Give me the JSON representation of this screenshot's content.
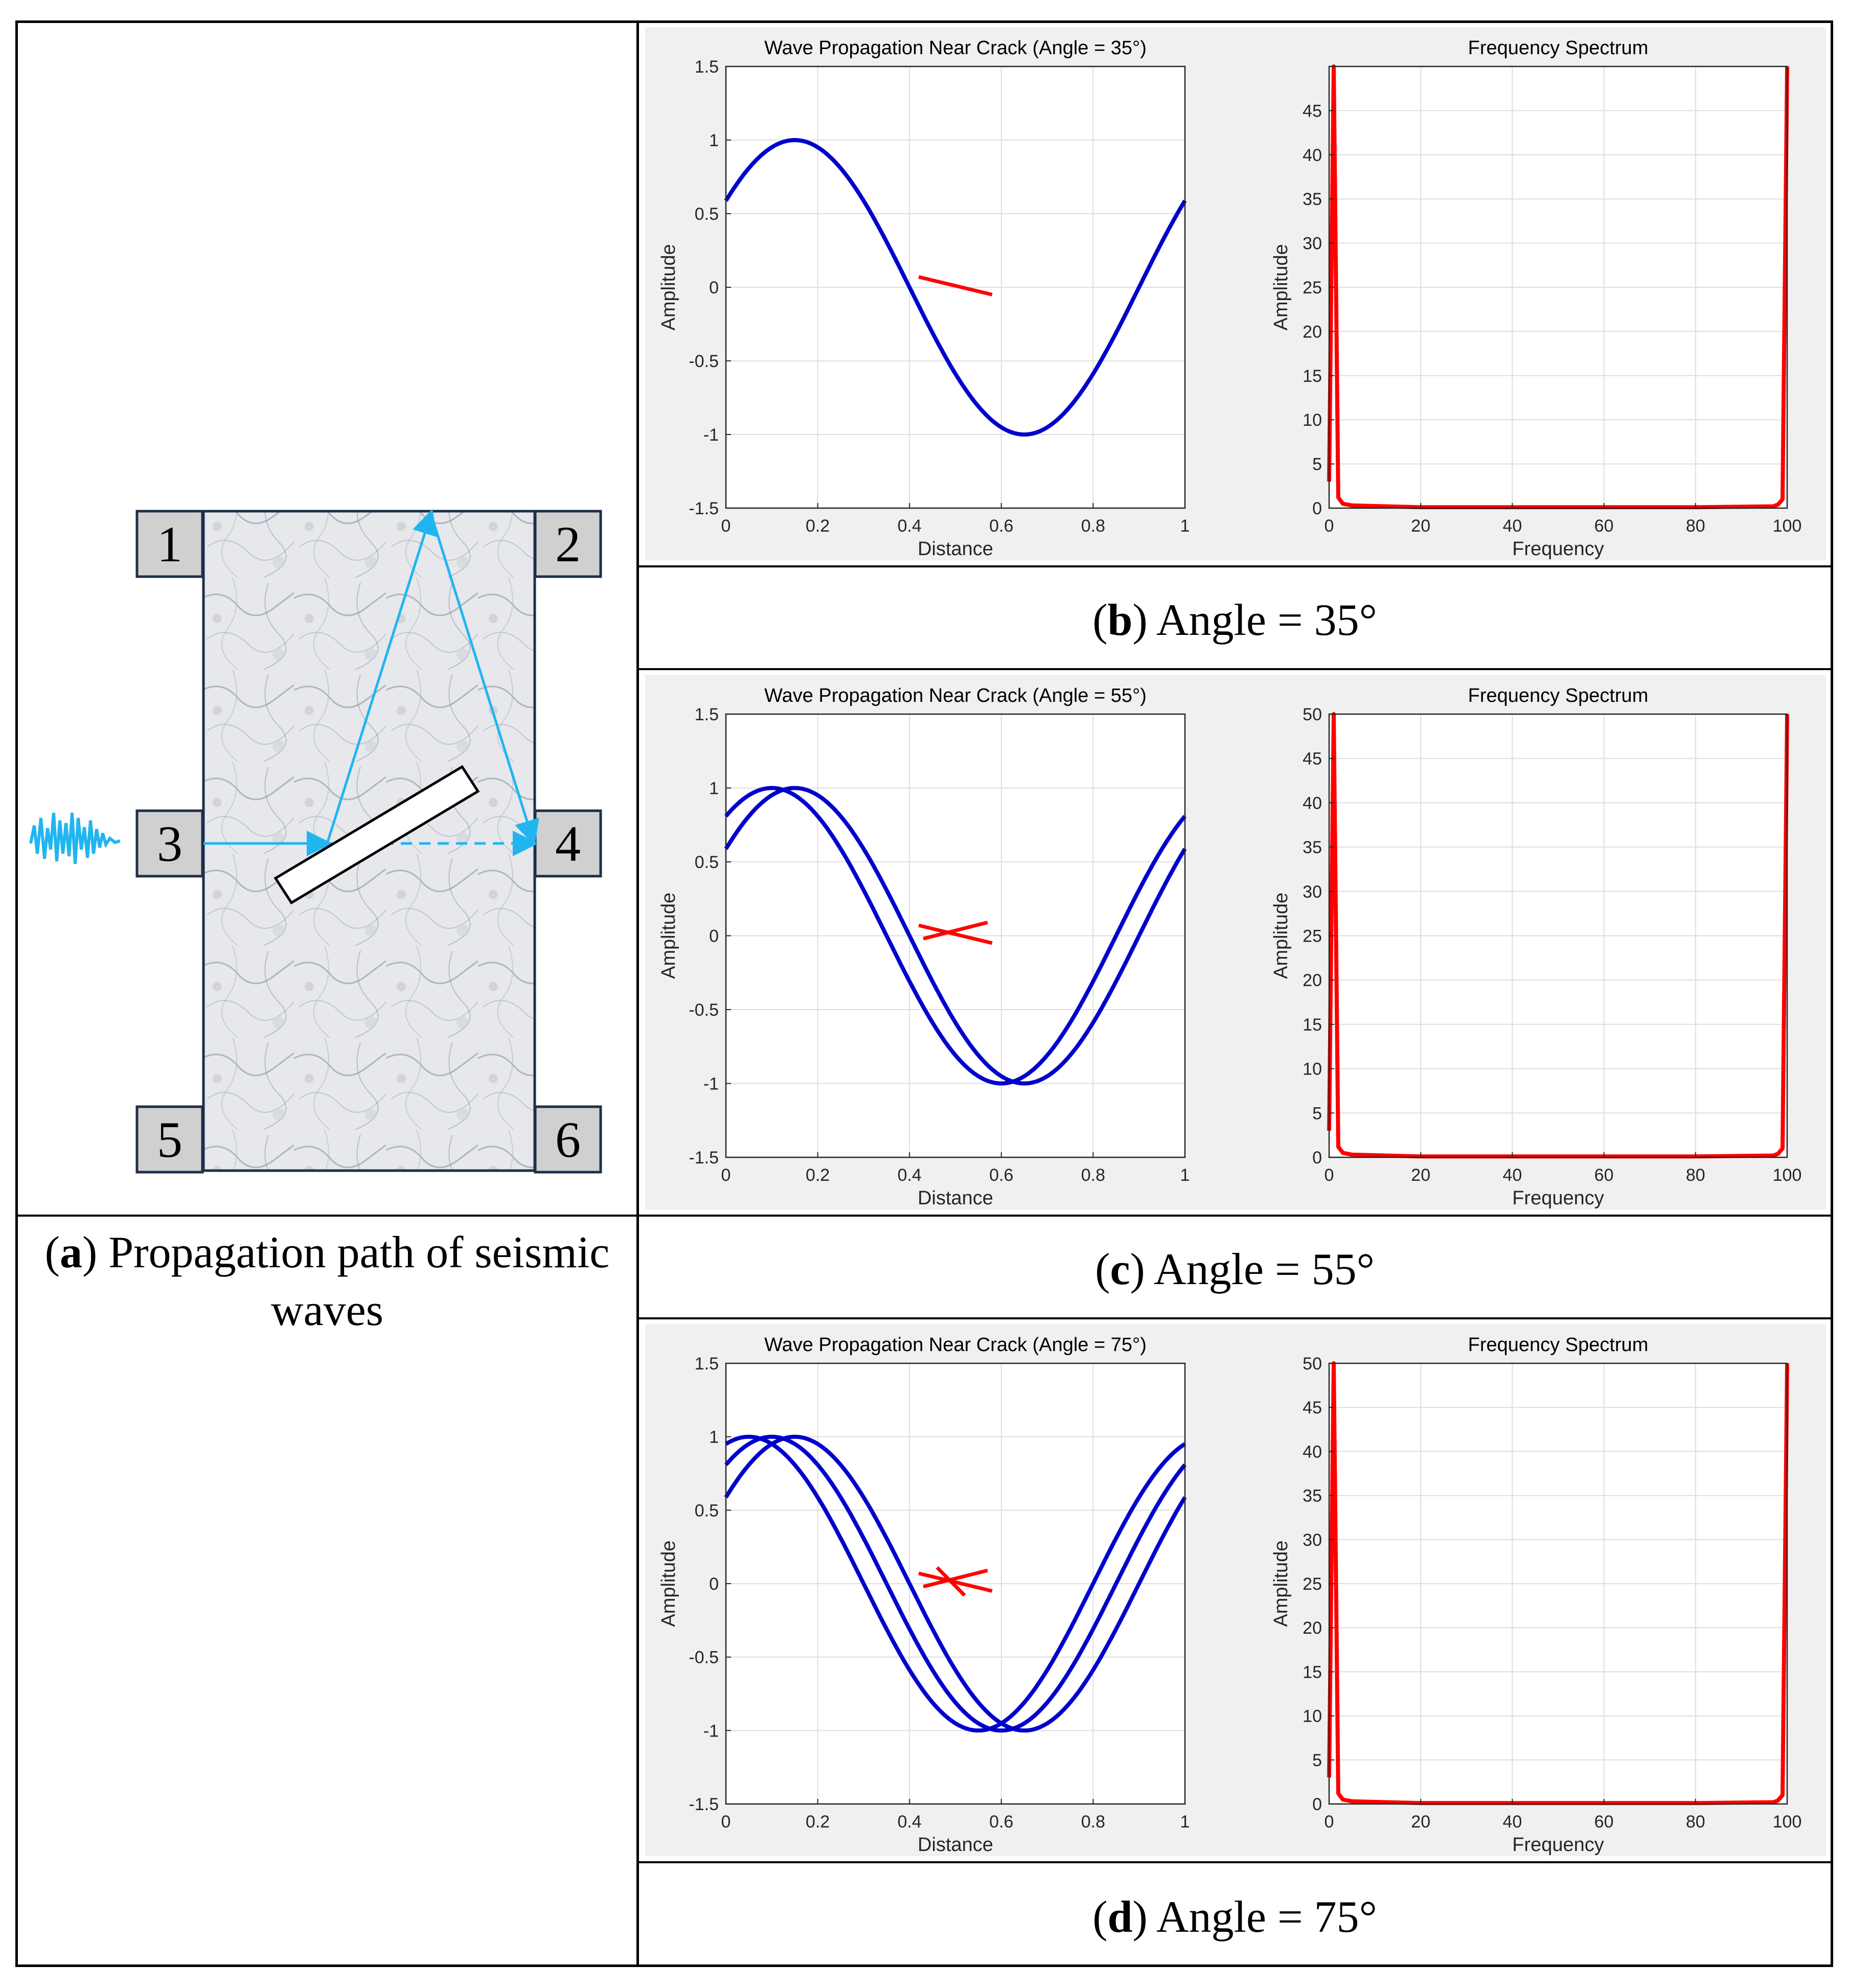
{
  "colors": {
    "wave": "#0000cc",
    "crack": "#ff0000",
    "spectrum": "#ff0000",
    "arrow": "#21b5f0",
    "panel_bg": "#f0f0f0",
    "rock_bg": "#e4e6ea"
  },
  "panel_a": {
    "caption_letter": "a",
    "caption_rest": "Propagation path of seismic waves",
    "sensors": [
      "1",
      "2",
      "3",
      "4",
      "5",
      "6"
    ]
  },
  "panels": [
    {
      "letter": "b",
      "caption_rest": "Angle = 35°"
    },
    {
      "letter": "c",
      "caption_rest": "Angle = 55°"
    },
    {
      "letter": "d",
      "caption_rest": "Angle = 75°"
    }
  ],
  "chart_data": [
    {
      "type": "line",
      "title": "Wave Propagation Near Crack (Angle = 35°)",
      "xlabel": "Distance",
      "ylabel": "Amplitude",
      "xlim": [
        0,
        1
      ],
      "ylim": [
        -1.5,
        1.5
      ],
      "xticks": [
        "0",
        "0.2",
        "0.4",
        "0.6",
        "0.8",
        "1"
      ],
      "yticks": [
        "-1.5",
        "-1",
        "-0.5",
        "0",
        "0.5",
        "1",
        "1.5"
      ],
      "grid": true,
      "series": [
        {
          "phase_shifts": [
            0
          ],
          "x": [
            0,
            0.15,
            0.4,
            0.65,
            0.9,
            1
          ],
          "y": [
            0.59,
            1,
            0,
            -1,
            0,
            0.59
          ]
        }
      ],
      "crack_lines": [
        {
          "x": [
            0.42,
            0.58
          ],
          "y": [
            0.07,
            -0.05
          ]
        }
      ]
    },
    {
      "type": "line",
      "title": "Frequency Spectrum",
      "xlabel": "Frequency",
      "ylabel": "Amplitude",
      "xlim": [
        0,
        100
      ],
      "ylim": [
        0,
        50
      ],
      "xticks": [
        "0",
        "20",
        "40",
        "60",
        "80",
        "100"
      ],
      "yticks": [
        "0",
        "5",
        "10",
        "15",
        "20",
        "25",
        "30",
        "35",
        "40",
        "45"
      ],
      "grid": true,
      "series": [
        {
          "x": [
            0,
            1,
            2,
            3,
            5,
            20,
            40,
            60,
            80,
            97,
            98,
            99,
            100
          ],
          "y": [
            3,
            50,
            1.2,
            0.5,
            0.3,
            0.1,
            0.1,
            0.1,
            0.1,
            0.2,
            0.4,
            1,
            50
          ]
        }
      ]
    },
    {
      "type": "line",
      "title": "Wave Propagation Near Crack (Angle = 55°)",
      "xlabel": "Distance",
      "ylabel": "Amplitude",
      "xlim": [
        0,
        1
      ],
      "ylim": [
        -1.5,
        1.5
      ],
      "xticks": [
        "0",
        "0.2",
        "0.4",
        "0.6",
        "0.8",
        "1"
      ],
      "yticks": [
        "-1.5",
        "-1",
        "-0.5",
        "0",
        "0.5",
        "1",
        "1.5"
      ],
      "grid": true,
      "series": [
        {
          "x": [
            0,
            0.15,
            0.4,
            0.65,
            0.9,
            1
          ],
          "y": [
            0.59,
            1,
            0,
            -1,
            0,
            0.59
          ]
        },
        {
          "x": [
            0,
            0.1,
            0.35,
            0.6,
            0.85,
            1
          ],
          "y": [
            0.81,
            1,
            0,
            -1,
            0,
            0.81
          ]
        }
      ],
      "crack_lines": [
        {
          "x": [
            0.42,
            0.58
          ],
          "y": [
            0.07,
            -0.05
          ]
        },
        {
          "x": [
            0.43,
            0.57
          ],
          "y": [
            -0.02,
            0.09
          ]
        }
      ]
    },
    {
      "type": "line",
      "title": "Frequency Spectrum",
      "xlabel": "Frequency",
      "ylabel": "Amplitude",
      "xlim": [
        0,
        100
      ],
      "ylim": [
        0,
        50
      ],
      "xticks": [
        "0",
        "20",
        "40",
        "60",
        "80",
        "100"
      ],
      "yticks": [
        "0",
        "5",
        "10",
        "15",
        "20",
        "25",
        "30",
        "35",
        "40",
        "45",
        "50"
      ],
      "grid": true,
      "series": [
        {
          "x": [
            0,
            1,
            2,
            3,
            5,
            20,
            40,
            60,
            80,
            97,
            98,
            99,
            100
          ],
          "y": [
            3,
            50,
            1.2,
            0.5,
            0.3,
            0.1,
            0.1,
            0.1,
            0.1,
            0.2,
            0.4,
            1,
            50
          ]
        }
      ]
    },
    {
      "type": "line",
      "title": "Wave Propagation Near Crack (Angle = 75°)",
      "xlabel": "Distance",
      "ylabel": "Amplitude",
      "xlim": [
        0,
        1
      ],
      "ylim": [
        -1.5,
        1.5
      ],
      "xticks": [
        "0",
        "0.2",
        "0.4",
        "0.6",
        "0.8",
        "1"
      ],
      "yticks": [
        "-1.5",
        "-1",
        "-0.5",
        "0",
        "0.5",
        "1",
        "1.5"
      ],
      "grid": true,
      "series": [
        {
          "x": [
            0,
            0.15,
            0.4,
            0.65,
            0.9,
            1
          ],
          "y": [
            0.59,
            1,
            0,
            -1,
            0,
            0.59
          ]
        },
        {
          "x": [
            0,
            0.1,
            0.35,
            0.6,
            0.85,
            1
          ],
          "y": [
            0.81,
            1,
            0,
            -1,
            0,
            0.81
          ]
        },
        {
          "x": [
            0,
            0.05,
            0.3,
            0.55,
            0.8,
            1
          ],
          "y": [
            0.95,
            1,
            0,
            -1,
            0,
            0.95
          ]
        }
      ],
      "crack_lines": [
        {
          "x": [
            0.42,
            0.58
          ],
          "y": [
            0.07,
            -0.05
          ]
        },
        {
          "x": [
            0.43,
            0.57
          ],
          "y": [
            -0.02,
            0.09
          ]
        },
        {
          "x": [
            0.46,
            0.52
          ],
          "y": [
            0.11,
            -0.08
          ]
        }
      ]
    },
    {
      "type": "line",
      "title": "Frequency Spectrum",
      "xlabel": "Frequency",
      "ylabel": "Amplitude",
      "xlim": [
        0,
        100
      ],
      "ylim": [
        0,
        50
      ],
      "xticks": [
        "0",
        "20",
        "40",
        "60",
        "80",
        "100"
      ],
      "yticks": [
        "0",
        "5",
        "10",
        "15",
        "20",
        "25",
        "30",
        "35",
        "40",
        "45",
        "50"
      ],
      "grid": true,
      "series": [
        {
          "x": [
            0,
            1,
            2,
            3,
            5,
            20,
            40,
            60,
            80,
            97,
            98,
            99,
            100
          ],
          "y": [
            3,
            50,
            1.2,
            0.5,
            0.3,
            0.1,
            0.1,
            0.1,
            0.1,
            0.2,
            0.4,
            1,
            50
          ]
        }
      ]
    }
  ]
}
